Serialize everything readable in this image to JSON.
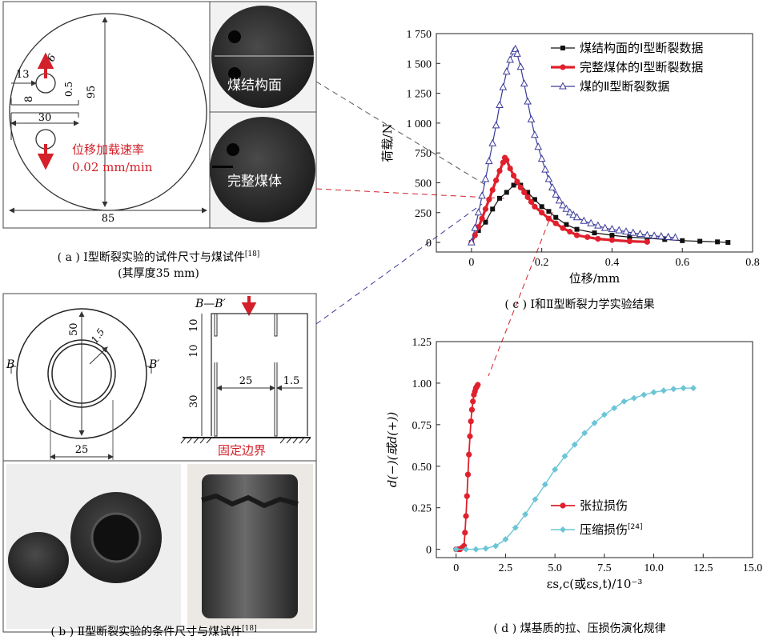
{
  "panel_a": {
    "dim_diameter": "95",
    "dim_width": "85",
    "dim_notch": "30",
    "dim_hole_offset": "13",
    "dim_hole_d": "6",
    "dim_8": "8",
    "dim_05": "0.5",
    "load_label": "位移加载速率",
    "load_rate": "0.02 mm/min",
    "photo1_label": "煤结构面",
    "photo2_label": "完整煤体",
    "caption": "( a ) Ⅰ型断裂实验的试件尺寸与煤试件",
    "caption_ref": "[18]",
    "caption2": "(其厚度35 mm)"
  },
  "panel_b": {
    "dim_50": "50",
    "dim_15a": "1.5",
    "dim_25a": "25",
    "b_left": "B",
    "b_right": "B′",
    "section_label": "B—B′",
    "dim_10a": "10",
    "dim_10b": "10",
    "dim_30": "30",
    "dim_25b": "25",
    "dim_15b": "1.5",
    "boundary_label": "固定边界",
    "caption": "( b ) Ⅱ型断裂实验的条件尺寸与煤试件",
    "caption_ref": "[18]"
  },
  "panel_c": {
    "caption": "( c ) Ⅰ和Ⅱ型断裂力学实验结果"
  },
  "panel_d": {
    "caption": "( d ) 煤基质的拉、压损伤演化规律"
  },
  "colors": {
    "black": "#111111",
    "red": "#e0202c",
    "blue": "#3b3b9a",
    "cyan": "#6cc5d6"
  },
  "chart_data": [
    {
      "type": "line",
      "xlabel": "位移/mm",
      "ylabel": "荷载/N",
      "xlim": [
        -0.1,
        0.8
      ],
      "ylim": [
        -80,
        1750
      ],
      "xticks": [
        "0",
        "0.2",
        "0.4",
        "0.6",
        "0.8"
      ],
      "yticks": [
        "0",
        "250",
        "500",
        "750",
        "1 000",
        "1 250",
        "1 500",
        "1 750"
      ],
      "legend_position": "top-right",
      "series": [
        {
          "name": "煤结构面的Ⅰ型断裂数据",
          "marker": "square",
          "color": "#111111",
          "x": [
            0,
            0.02,
            0.04,
            0.06,
            0.08,
            0.1,
            0.12,
            0.13,
            0.14,
            0.16,
            0.18,
            0.2,
            0.22,
            0.24,
            0.27,
            0.3,
            0.35,
            0.4,
            0.45,
            0.5,
            0.55,
            0.6,
            0.65,
            0.7,
            0.73
          ],
          "y": [
            0,
            100,
            170,
            280,
            370,
            420,
            480,
            500,
            480,
            420,
            360,
            300,
            260,
            210,
            150,
            110,
            80,
            60,
            45,
            35,
            25,
            15,
            10,
            5,
            0
          ]
        },
        {
          "name": "完整煤体的Ⅰ型断裂数据",
          "marker": "circle",
          "color": "#e0202c",
          "x": [
            0,
            0.01,
            0.02,
            0.03,
            0.04,
            0.05,
            0.06,
            0.07,
            0.08,
            0.09,
            0.095,
            0.1,
            0.11,
            0.12,
            0.13,
            0.14,
            0.15,
            0.16,
            0.17,
            0.18,
            0.2,
            0.22,
            0.24,
            0.26,
            0.28,
            0.3,
            0.33,
            0.36,
            0.4,
            0.45,
            0.5
          ],
          "y": [
            0,
            60,
            130,
            200,
            280,
            360,
            440,
            520,
            600,
            670,
            710,
            690,
            620,
            560,
            510,
            460,
            420,
            380,
            340,
            300,
            250,
            200,
            160,
            120,
            90,
            60,
            45,
            30,
            20,
            10,
            5
          ]
        },
        {
          "name": "煤的Ⅱ型断裂数据",
          "marker": "triangle",
          "color": "#3b3b9a",
          "x": [
            0,
            0.01,
            0.02,
            0.03,
            0.04,
            0.05,
            0.06,
            0.07,
            0.08,
            0.09,
            0.1,
            0.11,
            0.12,
            0.125,
            0.13,
            0.14,
            0.15,
            0.16,
            0.17,
            0.18,
            0.19,
            0.2,
            0.21,
            0.22,
            0.23,
            0.24,
            0.25,
            0.26,
            0.27,
            0.28,
            0.29,
            0.3,
            0.32,
            0.34,
            0.36,
            0.38,
            0.4,
            0.42,
            0.44,
            0.46,
            0.48,
            0.5,
            0.52,
            0.54,
            0.56,
            0.58
          ],
          "y": [
            0,
            120,
            250,
            390,
            530,
            680,
            830,
            980,
            1150,
            1300,
            1430,
            1530,
            1600,
            1620,
            1580,
            1470,
            1330,
            1180,
            1030,
            900,
            800,
            700,
            610,
            530,
            460,
            400,
            350,
            310,
            280,
            250,
            230,
            210,
            180,
            160,
            140,
            120,
            110,
            100,
            90,
            80,
            70,
            60,
            55,
            50,
            45,
            40
          ]
        }
      ]
    },
    {
      "type": "line",
      "xlabel": "εs,c(或εs,t)/10⁻³",
      "ylabel": "d(−)(或d(+))",
      "xlim": [
        -1,
        15
      ],
      "ylim": [
        -0.05,
        1.25
      ],
      "xticks": [
        "0",
        "2.5",
        "5.0",
        "7.5",
        "10.0",
        "12.5",
        "15.0"
      ],
      "yticks": [
        "0",
        "0.25",
        "0.50",
        "0.75",
        "1.00",
        "1.25"
      ],
      "legend_position": "lower-left",
      "series": [
        {
          "name": "张拉损伤",
          "marker": "circle",
          "color": "#e0202c",
          "x": [
            0,
            0.1,
            0.2,
            0.3,
            0.4,
            0.45,
            0.5,
            0.55,
            0.6,
            0.65,
            0.7,
            0.75,
            0.8,
            0.85,
            0.9,
            0.95,
            1.0,
            1.05,
            1.1
          ],
          "y": [
            0,
            0,
            0,
            0.01,
            0.02,
            0.1,
            0.2,
            0.32,
            0.45,
            0.57,
            0.68,
            0.77,
            0.84,
            0.89,
            0.93,
            0.95,
            0.97,
            0.98,
            0.99
          ]
        },
        {
          "name": "压缩损伤",
          "name_ref": "[24]",
          "marker": "diamond",
          "color": "#6cc5d6",
          "x": [
            0,
            0.5,
            1,
            1.5,
            2,
            2.5,
            3,
            3.5,
            4,
            4.5,
            5,
            5.5,
            6,
            6.5,
            7,
            7.5,
            8,
            8.5,
            9,
            9.5,
            10,
            10.5,
            11,
            11.5,
            12
          ],
          "y": [
            0,
            0,
            0,
            0.005,
            0.02,
            0.06,
            0.13,
            0.21,
            0.3,
            0.39,
            0.48,
            0.56,
            0.63,
            0.7,
            0.76,
            0.81,
            0.85,
            0.89,
            0.91,
            0.93,
            0.945,
            0.955,
            0.965,
            0.97,
            0.97
          ]
        }
      ]
    }
  ]
}
